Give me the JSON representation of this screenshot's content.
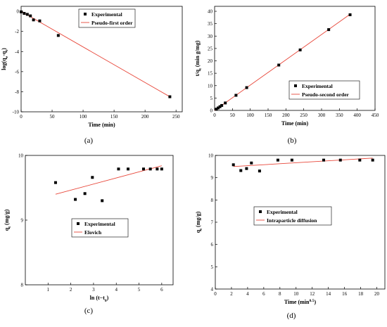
{
  "chart_data": [
    {
      "type": "scatter",
      "caption": "(a)",
      "xlabel": "Time (min)",
      "ylabel": "log(q<sub>e</sub>-q<sub>t</sub>)",
      "ylabel_main": "log(q",
      "ylabel_s1": "e",
      "ylabel_mid": "-q",
      "ylabel_s2": "t",
      "ylabel_end": ")",
      "xlim": [
        0,
        260
      ],
      "ylim": [
        -10,
        0.5
      ],
      "xticks": [
        0,
        50,
        100,
        150,
        200,
        250
      ],
      "yticks": [
        0,
        -2,
        -4,
        -6,
        -8,
        -10
      ],
      "legend": {
        "position": "top-right",
        "entries": [
          "Experimental",
          "Pseudo-first order"
        ]
      },
      "series": [
        {
          "name": "Experimental",
          "kind": "points",
          "x": [
            0,
            5,
            10,
            15,
            20,
            30,
            60,
            240
          ],
          "y": [
            -0.05,
            -0.2,
            -0.3,
            -0.45,
            -0.85,
            -0.95,
            -2.4,
            -8.5
          ]
        },
        {
          "name": "Pseudo-first order",
          "kind": "line",
          "x": [
            0,
            240
          ],
          "y": [
            0.0,
            -8.5
          ]
        }
      ],
      "colors": {
        "points": "#000000",
        "line": "#e8473a"
      }
    },
    {
      "type": "scatter",
      "caption": "(b)",
      "xlabel": "Time (min)",
      "ylabel": "t/q<sub>t</sub> (min g/mg)",
      "ylabel_main": "t/q",
      "ylabel_s1": "t",
      "ylabel_end": " (min g/mg)",
      "xlim": [
        0,
        450
      ],
      "ylim": [
        0,
        42
      ],
      "xticks": [
        0,
        50,
        100,
        150,
        200,
        250,
        300,
        350,
        400,
        450
      ],
      "yticks": [
        0,
        5,
        10,
        15,
        20,
        25,
        30,
        35,
        40
      ],
      "legend": {
        "position": "bottom-right",
        "entries": [
          "Experimental",
          "Pseudo-second order"
        ]
      },
      "series": [
        {
          "name": "Experimental",
          "kind": "points",
          "x": [
            5,
            10,
            15,
            20,
            30,
            60,
            90,
            180,
            240,
            320,
            380
          ],
          "y": [
            0.5,
            1.0,
            1.5,
            2.0,
            3.0,
            6.1,
            9.2,
            18.3,
            24.4,
            32.6,
            38.6
          ]
        },
        {
          "name": "Pseudo-second order",
          "kind": "line",
          "x": [
            0,
            380
          ],
          "y": [
            0,
            38.8
          ]
        }
      ],
      "colors": {
        "points": "#000000",
        "line": "#e8473a"
      }
    },
    {
      "type": "scatter",
      "caption": "(c)",
      "xlabel": "ln (t−t<sub>0</sub>)",
      "xlabel_main": "ln (t−t",
      "xlabel_s1": "0",
      "xlabel_end": ")",
      "ylabel": "q<sub>t</sub> (mg/g)",
      "ylabel_main": "q",
      "ylabel_s1": "t",
      "ylabel_end": " (mg/g)",
      "xlim": [
        0,
        6.5
      ],
      "ylim": [
        8,
        10
      ],
      "xticks": [
        1,
        2,
        3,
        4,
        5,
        6
      ],
      "yticks": [
        8,
        9,
        10
      ],
      "legend": {
        "position": "bottom-right",
        "entries": [
          "Experimental",
          "Elovich"
        ]
      },
      "series": [
        {
          "name": "Experimental",
          "kind": "points",
          "x": [
            1.33,
            2.2,
            2.62,
            2.95,
            3.38,
            4.1,
            4.52,
            5.2,
            5.5,
            5.8,
            6.0
          ],
          "y": [
            9.58,
            9.32,
            9.41,
            9.66,
            9.3,
            9.79,
            9.79,
            9.79,
            9.79,
            9.79,
            9.79
          ]
        },
        {
          "name": "Elovich",
          "kind": "line",
          "x": [
            1.33,
            6.0
          ],
          "y": [
            9.4,
            9.84
          ]
        }
      ],
      "colors": {
        "points": "#000000",
        "line": "#e8473a"
      }
    },
    {
      "type": "scatter",
      "caption": "(d)",
      "xlabel": "Time (min<sup>0.5</sup>)",
      "xlabel_main": "Time (min",
      "xlabel_s1": "0.5",
      "xlabel_end": ")",
      "ylabel": "q<sub>t</sub> (mg/g)",
      "ylabel_main": "q",
      "ylabel_s1": "t",
      "ylabel_end": " (mg/g)",
      "xlim": [
        0,
        21
      ],
      "ylim": [
        4,
        10
      ],
      "xticks": [
        0,
        2,
        4,
        6,
        8,
        10,
        12,
        14,
        16,
        18,
        20
      ],
      "yticks": [
        4,
        5,
        6,
        7,
        8,
        9,
        10
      ],
      "legend": {
        "position": "middle-left",
        "entries": [
          "Experimental",
          "Intraparticle diffusion"
        ]
      },
      "series": [
        {
          "name": "Experimental",
          "kind": "points",
          "x": [
            2.24,
            3.16,
            3.87,
            4.47,
            5.48,
            7.75,
            9.49,
            13.42,
            15.49,
            17.89,
            19.49
          ],
          "y": [
            9.58,
            9.32,
            9.41,
            9.66,
            9.3,
            9.79,
            9.79,
            9.79,
            9.79,
            9.79,
            9.79
          ]
        },
        {
          "name": "Intraparticle diffusion",
          "kind": "line",
          "x": [
            2.24,
            19.49
          ],
          "y": [
            9.5,
            9.88
          ]
        }
      ],
      "colors": {
        "points": "#000000",
        "line": "#e8473a"
      }
    }
  ]
}
